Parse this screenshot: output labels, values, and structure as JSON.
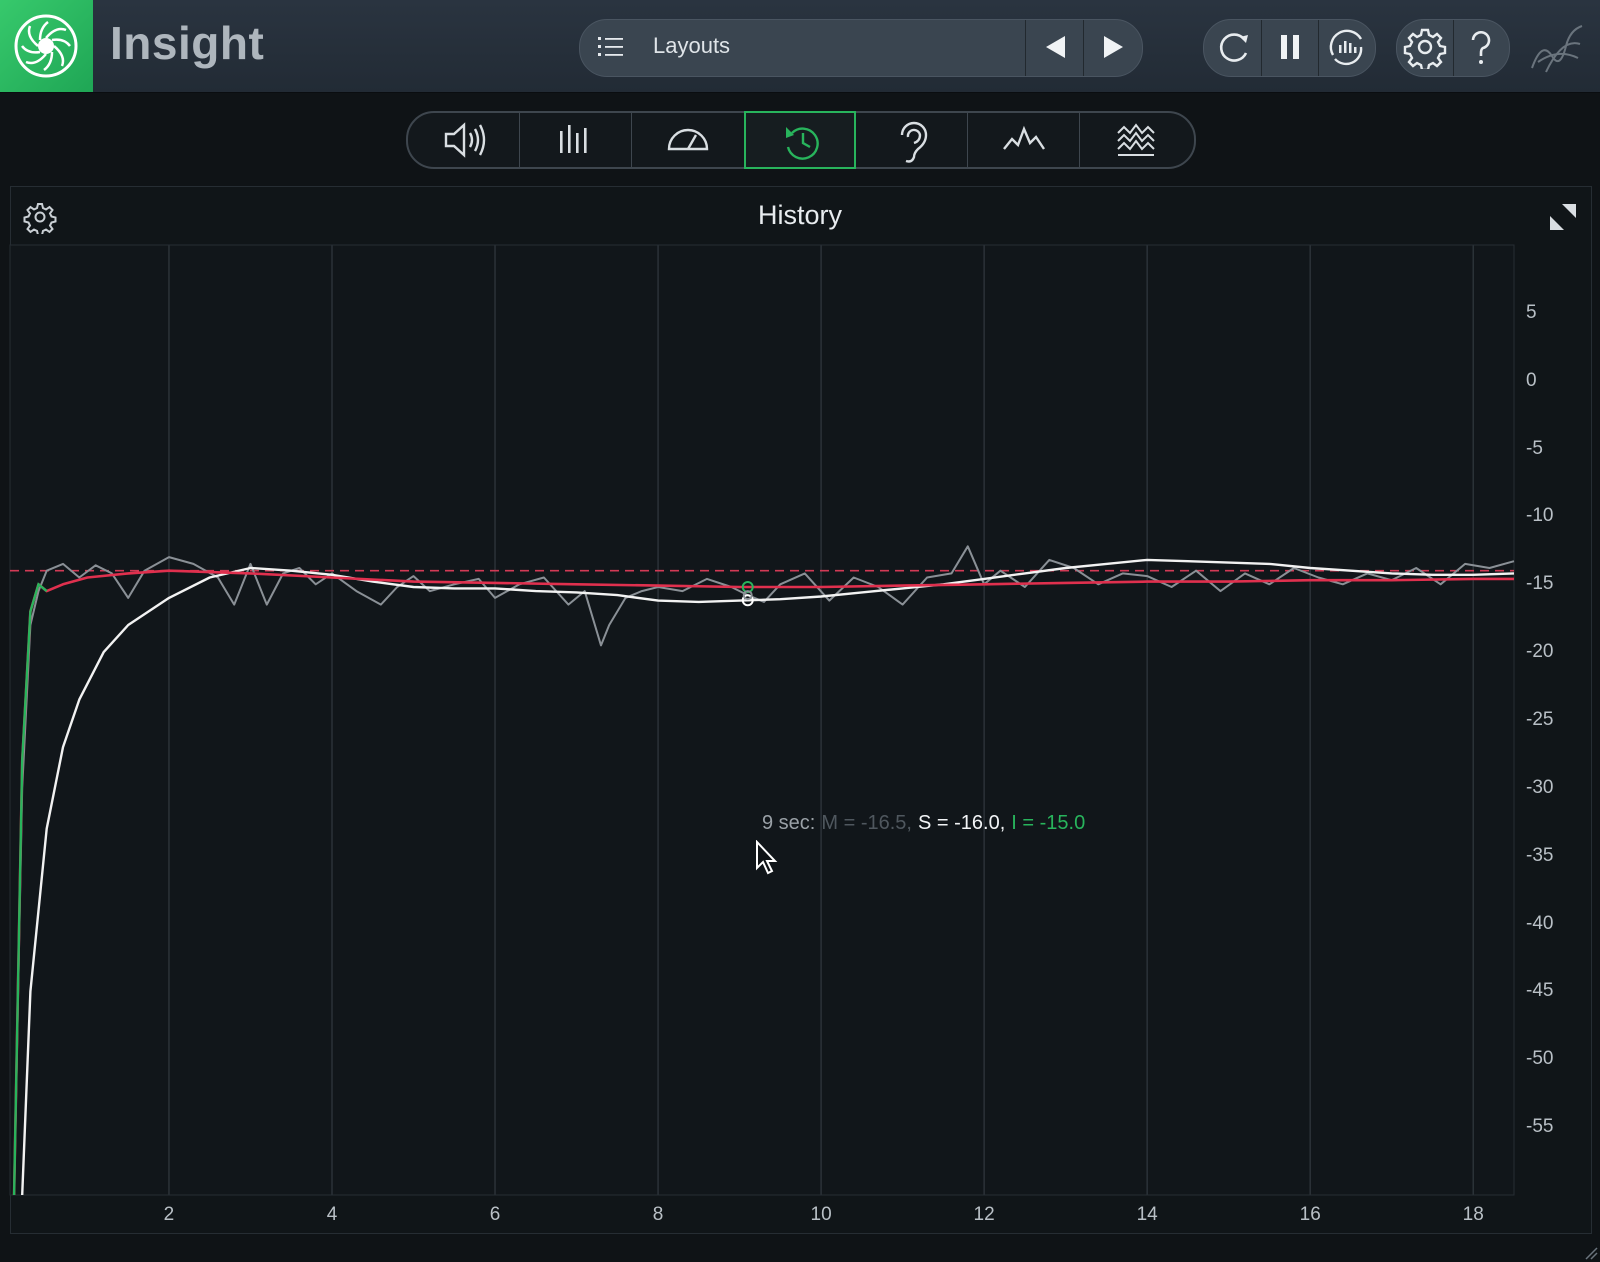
{
  "app": {
    "title": "Insight"
  },
  "toolbar": {
    "layouts_label": "Layouts",
    "icons": [
      "menu-icon",
      "previous-icon",
      "next-icon",
      "reset-icon",
      "pause-icon",
      "capture-icon",
      "settings-icon",
      "help-icon",
      "signature-logo-icon"
    ]
  },
  "tabs": [
    {
      "name": "loudness",
      "icon": "speaker-icon",
      "active": false
    },
    {
      "name": "levels",
      "icon": "bars-icon",
      "active": false
    },
    {
      "name": "meter",
      "icon": "gauge-icon",
      "active": false
    },
    {
      "name": "history",
      "icon": "history-icon",
      "active": true
    },
    {
      "name": "sound-field",
      "icon": "ear-icon",
      "active": false
    },
    {
      "name": "spectrum",
      "icon": "spectrum-icon",
      "active": false
    },
    {
      "name": "spectrogram",
      "icon": "spectrogram-icon",
      "active": false
    }
  ],
  "panel": {
    "title": "History"
  },
  "readout": {
    "time": "9 sec:",
    "m": "M = -16.5,",
    "s": "S = -16.0,",
    "i": "I = -15.0"
  },
  "colors": {
    "accent": "#28b45c",
    "momentary": "#8a9096",
    "short_term": "#f2f2f2",
    "integrated": "#e0304e",
    "target": "#d13a55"
  },
  "chart_data": {
    "type": "line",
    "title": "History",
    "xlabel": "",
    "ylabel": "",
    "xlim": [
      0.05,
      18.5
    ],
    "ylim": [
      -60,
      10
    ],
    "x_ticks": [
      2,
      4,
      6,
      8,
      10,
      12,
      14,
      16,
      18
    ],
    "y_ticks": [
      5,
      0,
      -5,
      -10,
      -15,
      -20,
      -25,
      -30,
      -35,
      -40,
      -45,
      -50,
      -55
    ],
    "grid": true,
    "target_level": -14.0,
    "cursor": {
      "x": 9.1
    },
    "series": [
      {
        "key": "momentary",
        "x": [
          0.1,
          0.2,
          0.3,
          0.4,
          0.5,
          0.7,
          0.9,
          1.1,
          1.3,
          1.5,
          1.7,
          2.0,
          2.3,
          2.6,
          2.8,
          3.0,
          3.2,
          3.4,
          3.6,
          3.8,
          4.0,
          4.3,
          4.6,
          4.8,
          5.0,
          5.2,
          5.5,
          5.8,
          6.0,
          6.3,
          6.6,
          6.9,
          7.1,
          7.3,
          7.4,
          7.6,
          7.8,
          8.0,
          8.3,
          8.6,
          8.9,
          9.1,
          9.3,
          9.5,
          9.8,
          10.1,
          10.4,
          10.7,
          11.0,
          11.3,
          11.6,
          11.8,
          12.0,
          12.2,
          12.5,
          12.8,
          13.1,
          13.4,
          13.7,
          14.0,
          14.3,
          14.6,
          14.9,
          15.2,
          15.5,
          15.8,
          16.1,
          16.4,
          16.7,
          17.0,
          17.3,
          17.6,
          17.9,
          18.2,
          18.5
        ],
        "y": [
          -60,
          -30,
          -18,
          -15.5,
          -14,
          -13.5,
          -14.5,
          -13.6,
          -14.2,
          -16,
          -14,
          -13,
          -13.5,
          -14.5,
          -16.5,
          -13.5,
          -16.5,
          -14.2,
          -13.8,
          -15,
          -14.2,
          -15.5,
          -16.5,
          -15.2,
          -14.4,
          -15.5,
          -15,
          -14.6,
          -16,
          -15,
          -14.5,
          -16.5,
          -15.5,
          -19.5,
          -18,
          -16,
          -15.5,
          -15.2,
          -15.5,
          -14.6,
          -15.2,
          -15.8,
          -16.3,
          -15,
          -14.2,
          -16.2,
          -14.5,
          -15.2,
          -16.5,
          -14.5,
          -14.2,
          -12.2,
          -15,
          -14,
          -15.2,
          -13.2,
          -13.8,
          -15,
          -14.2,
          -14.4,
          -15.2,
          -14,
          -15.5,
          -14.2,
          -15,
          -13.8,
          -14.5,
          -15,
          -14.2,
          -14.7,
          -13.8,
          -15,
          -13.5,
          -13.8,
          -13.3
        ]
      },
      {
        "key": "short_term",
        "x": [
          0.2,
          0.3,
          0.5,
          0.7,
          0.9,
          1.2,
          1.5,
          2.0,
          2.5,
          3.0,
          3.5,
          4.0,
          4.5,
          5.0,
          5.5,
          6.0,
          6.5,
          7.0,
          7.5,
          8.0,
          8.5,
          9.0,
          9.5,
          10.0,
          10.5,
          11.0,
          11.5,
          12.0,
          12.5,
          13.0,
          13.5,
          14.0,
          14.5,
          15.0,
          15.5,
          16.0,
          16.5,
          17.0,
          17.5,
          18.0,
          18.5
        ],
        "y": [
          -60,
          -45,
          -33,
          -27,
          -23.5,
          -20,
          -18,
          -16,
          -14.5,
          -13.8,
          -14,
          -14.3,
          -14.8,
          -15.2,
          -15.3,
          -15.3,
          -15.5,
          -15.6,
          -15.8,
          -16.2,
          -16.3,
          -16.2,
          -16.1,
          -15.9,
          -15.6,
          -15.3,
          -15,
          -14.6,
          -14.2,
          -13.8,
          -13.5,
          -13.2,
          -13.3,
          -13.4,
          -13.5,
          -13.8,
          -14,
          -14.2,
          -14.3,
          -14.3,
          -14.2
        ]
      },
      {
        "key": "integrated",
        "x": [
          0.1,
          0.2,
          0.3,
          0.4,
          0.5,
          0.7,
          1.0,
          1.5,
          2.0,
          3.0,
          4.0,
          5.0,
          6.0,
          7.0,
          8.0,
          9.0,
          10.0,
          11.0,
          12.0,
          13.0,
          14.0,
          15.0,
          16.0,
          17.0,
          18.0,
          18.5
        ],
        "y": [
          -60,
          -28,
          -17,
          -15,
          -15.5,
          -15,
          -14.5,
          -14.2,
          -14,
          -14.2,
          -14.5,
          -14.8,
          -14.9,
          -15,
          -15.1,
          -15.2,
          -15.2,
          -15.1,
          -15,
          -14.9,
          -14.8,
          -14.8,
          -14.7,
          -14.7,
          -14.6,
          -14.6
        ]
      }
    ]
  }
}
